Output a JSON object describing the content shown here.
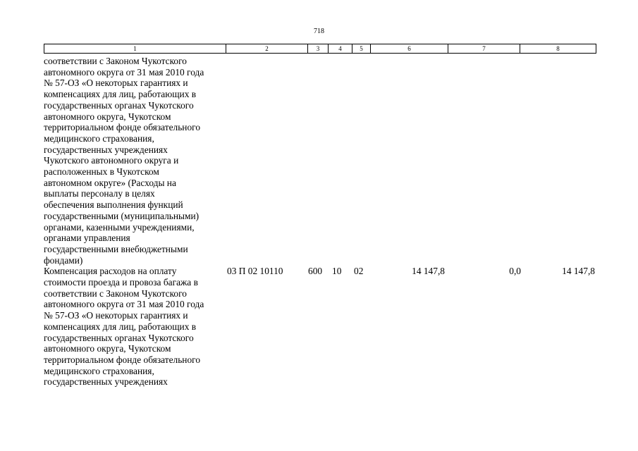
{
  "page_number": "718",
  "table": {
    "header": [
      1,
      2,
      3,
      4,
      5,
      6,
      7,
      8
    ],
    "rows": [
      {
        "description": [
          "соответствии с Законом Чукотского",
          "автономного округа от 31 мая 2010 года",
          "№ 57-ОЗ «О некоторых гарантиях и",
          "компенсациях для лиц, работающих в",
          "государственных органах Чукотского",
          "автономного округа, Чукотском",
          "территориальном фонде обязательного",
          "медицинского страхования,",
          "государственных учреждениях",
          "Чукотского автономного округа и",
          "расположенных в Чукотском",
          "автономном округе» (Расходы на",
          "выплаты персоналу в целях",
          "обеспечения выполнения функций",
          "государственными (муниципальными)",
          "органами, казенными учреждениями,",
          "органами управления",
          "государственными внебюджетными",
          "фондами)"
        ]
      },
      {
        "description": [
          "Компенсация расходов на оплату",
          "стоимости проезда и провоза багажа в",
          "соответствии с Законом Чукотского",
          "автономного округа от 31 мая 2010 года",
          "№ 57-ОЗ «О некоторых гарантиях и",
          "компенсациях для лиц, работающих в",
          "государственных органах Чукотского",
          "автономного округа, Чукотском",
          "территориальном фонде обязательного",
          "медицинского страхования,",
          "государственных учреждениях"
        ],
        "code": "03 П 02 10110",
        "type": "600",
        "section": "10",
        "subsection": "02",
        "amount": "14 147,8",
        "change": "0,0",
        "total": "14 147,8"
      }
    ]
  }
}
